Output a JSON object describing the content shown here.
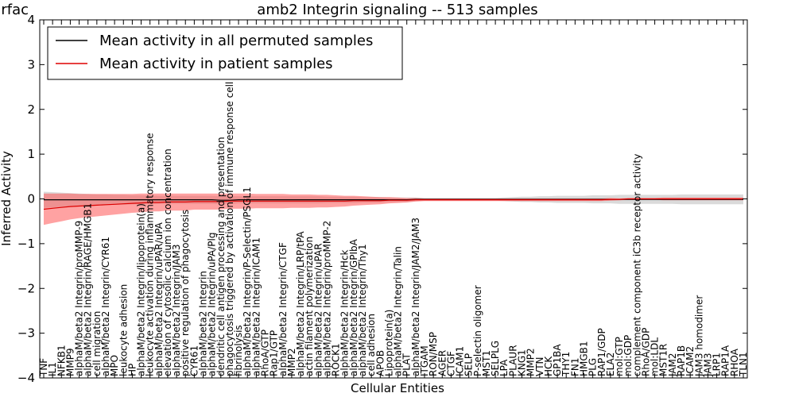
{
  "chart_data": {
    "type": "area",
    "title": "amb2 Integrin signaling -- 513 samples",
    "clipped_title_text": "urfac",
    "xlabel": "Cellular Entities",
    "ylabel": "Inferred Activity",
    "ylim": [
      -4,
      4
    ],
    "yticks": [
      "4",
      "3",
      "2",
      "1",
      "0",
      "−1",
      "−2",
      "−3",
      "−4"
    ],
    "ytick_values": [
      4,
      3,
      2,
      1,
      0,
      -1,
      -2,
      -3,
      -4
    ],
    "grid": false,
    "legend_position": "top-left",
    "categories": [
      "TNF",
      "IL1",
      "NFKB1",
      "MMP9",
      "alphaM/beta2 Integrin/proMMP-9",
      "alphaM/beta2 Integrin/RAGE/HMGB1",
      "cell migration",
      "alphaM/beta2 Integrin/CYR61",
      "MPO",
      "leukocyte adhesion",
      "HP",
      "alphaM/beta2 Integrin/lipoprotein(a)",
      "leukocyte activation during inflammatory response",
      "alphaM/beta2 Integrin/uPAR/uPA",
      "elevation of cytosolic calcium ion concentration",
      "alphaM/beta2 Integrin/JAM3",
      "positive regulation of phagocytosis",
      "CYR61",
      "alphaM/beta2 Integrin",
      "alphaM/beta2 Integrin/uPA/Plg",
      "dendritic cell antigen processing and presentation",
      "phagocytosis triggered by activation of immune response cell surface",
      "fibrinolysis",
      "alphaM/beta2 Integrin/P-Selectin/PSGL1",
      "alphaM/beta2 Integrin/ICAM1",
      "RhoA/GTP",
      "Rap1/GTP",
      "alphaM/beta2 Integrin/CTGF",
      "MMP2",
      "alphaM/beta2 Integrin/LRP/tPA",
      "actin filament polymerization",
      "alphaM/beta2 Integrin/uPAR",
      "alphaM/beta2 Integrin/proMMP-2",
      "ROCK1",
      "alphaM/beta2 Integrin/Hck",
      "alphaM/beta2 Integrin/GPIbA",
      "alphaM/beta2 Integrin/Thy1",
      "cell adhesion",
      "APOB",
      "Lipoprotein(a)",
      "alphaM/beta2 Integrin/Talin",
      "PLAT",
      "alphaM/beta2 Integrin/JAM2/JAM3",
      "ITGAM",
      "RON/MSP",
      "AGER",
      "CTGF",
      "ICAM1",
      "SELP",
      "P-selectin oligomer",
      "MST1",
      "SELPLG",
      "LPA",
      "PLAUR",
      "KNG1",
      "MMP2",
      "VTN",
      "HCK",
      "GP1BA",
      "THY1",
      "FN1",
      "HMGB1",
      "PLG",
      "RAP1/GDP",
      "ELA2",
      "mol:GTP",
      "mol:GDP",
      "complement component iC3b receptor activity",
      "RhoA/GDP",
      "mol:LDL",
      "MST1R",
      "JAM2",
      "RAP1B",
      "ICAM2",
      "JAM3 homodimer",
      "JAM3",
      "LRP1",
      "RAP1A",
      "RHOA",
      "TLN1"
    ],
    "series": [
      {
        "name": "Mean activity in all permuted samples",
        "color": "#000000",
        "band_color": "#bbbbbb",
        "values": [
          -0.02,
          -0.02,
          -0.02,
          -0.02,
          -0.02,
          -0.02,
          -0.02,
          -0.02,
          -0.02,
          -0.02,
          -0.02,
          -0.02,
          -0.02,
          -0.02,
          -0.02,
          -0.02,
          -0.02,
          -0.02,
          -0.02,
          -0.02,
          -0.03,
          -0.03,
          -0.02,
          -0.02,
          -0.02,
          -0.02,
          -0.02,
          -0.02,
          -0.02,
          -0.02,
          -0.02,
          -0.02,
          -0.02,
          -0.02,
          -0.02,
          -0.02,
          -0.02,
          -0.02,
          -0.02,
          -0.02,
          -0.02,
          -0.02,
          -0.01,
          -0.01,
          -0.01,
          -0.01,
          -0.01,
          -0.01,
          -0.01,
          -0.01,
          -0.01,
          -0.01,
          -0.01,
          -0.01,
          -0.01,
          -0.01,
          -0.01,
          -0.01,
          -0.01,
          -0.01,
          -0.01,
          -0.01,
          -0.01,
          -0.01,
          -0.01,
          -0.01,
          -0.01,
          -0.01,
          -0.01,
          -0.01,
          -0.01,
          -0.01,
          -0.01,
          -0.01,
          -0.01,
          -0.01,
          -0.01,
          -0.01,
          -0.01,
          -0.01
        ],
        "band_halfwidth": [
          0.18,
          0.17,
          0.16,
          0.15,
          0.14,
          0.13,
          0.12,
          0.12,
          0.11,
          0.11,
          0.1,
          0.1,
          0.1,
          0.09,
          0.09,
          0.09,
          0.09,
          0.09,
          0.09,
          0.09,
          0.09,
          0.09,
          0.08,
          0.08,
          0.08,
          0.08,
          0.08,
          0.08,
          0.08,
          0.08,
          0.08,
          0.08,
          0.07,
          0.07,
          0.07,
          0.07,
          0.06,
          0.06,
          0.06,
          0.05,
          0.05,
          0.05,
          0.04,
          0.03,
          0.03,
          0.03,
          0.03,
          0.03,
          0.03,
          0.03,
          0.03,
          0.03,
          0.04,
          0.05,
          0.06,
          0.06,
          0.07,
          0.07,
          0.08,
          0.08,
          0.08,
          0.08,
          0.09,
          0.09,
          0.09,
          0.1,
          0.1,
          0.1,
          0.1,
          0.1,
          0.1,
          0.1,
          0.11,
          0.11,
          0.11,
          0.11,
          0.11,
          0.11,
          0.11,
          0.11
        ]
      },
      {
        "name": "Mean activity in patient samples",
        "color": "#dd0000",
        "band_color": "#ff5555",
        "values": [
          -0.23,
          -0.21,
          -0.19,
          -0.17,
          -0.16,
          -0.15,
          -0.14,
          -0.13,
          -0.12,
          -0.11,
          -0.1,
          -0.09,
          -0.08,
          -0.08,
          -0.07,
          -0.07,
          -0.07,
          -0.06,
          -0.06,
          -0.06,
          -0.06,
          -0.05,
          -0.05,
          -0.05,
          -0.05,
          -0.05,
          -0.05,
          -0.05,
          -0.05,
          -0.05,
          -0.05,
          -0.05,
          -0.05,
          -0.05,
          -0.05,
          -0.04,
          -0.04,
          -0.04,
          -0.04,
          -0.03,
          -0.03,
          -0.03,
          -0.02,
          -0.02,
          -0.02,
          -0.02,
          -0.02,
          -0.02,
          -0.02,
          -0.02,
          -0.02,
          -0.02,
          -0.02,
          -0.02,
          -0.02,
          -0.02,
          -0.02,
          -0.02,
          -0.02,
          -0.02,
          -0.02,
          -0.02,
          -0.02,
          -0.02,
          -0.01,
          -0.01,
          0.0,
          0.0,
          0.0,
          0.0,
          0.0,
          0.0,
          0.0,
          0.0,
          0.0,
          0.0,
          0.0,
          0.0,
          0.0,
          0.0
        ],
        "band_halfwidth": [
          0.35,
          0.33,
          0.31,
          0.29,
          0.27,
          0.26,
          0.25,
          0.24,
          0.23,
          0.22,
          0.21,
          0.21,
          0.2,
          0.2,
          0.19,
          0.19,
          0.19,
          0.18,
          0.18,
          0.18,
          0.18,
          0.17,
          0.17,
          0.17,
          0.16,
          0.16,
          0.16,
          0.16,
          0.15,
          0.15,
          0.15,
          0.14,
          0.14,
          0.13,
          0.12,
          0.11,
          0.1,
          0.09,
          0.08,
          0.07,
          0.06,
          0.05,
          0.04,
          0.03,
          0.03,
          0.03,
          0.03,
          0.03,
          0.03,
          0.03,
          0.03,
          0.03,
          0.03,
          0.03,
          0.03,
          0.03,
          0.03,
          0.03,
          0.03,
          0.03,
          0.03,
          0.03,
          0.03,
          0.03,
          0.03,
          0.02,
          0.02,
          0.02,
          0.02,
          0.02,
          0.03,
          0.03,
          0.03,
          0.03,
          0.03,
          0.03,
          0.03,
          0.03,
          0.03,
          0.03
        ]
      }
    ]
  }
}
